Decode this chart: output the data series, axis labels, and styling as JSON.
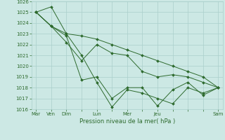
{
  "bg_color": "#cce8e4",
  "grid_color": "#aacfcb",
  "line_color": "#2d6a2d",
  "marker_color": "#2d6a2d",
  "xlabel": "Pression niveau de la mer( hPa )",
  "xlabel_color": "#2d6a2d",
  "tick_color": "#2d6a2d",
  "ylim": [
    1016,
    1026
  ],
  "yticks": [
    1016,
    1017,
    1018,
    1019,
    1020,
    1021,
    1022,
    1023,
    1024,
    1025,
    1026
  ],
  "xtick_labels": [
    "Mar",
    "Ven",
    "Dim",
    "",
    "Lun",
    "",
    "Mer",
    "",
    "Jeu",
    "",
    "",
    "",
    "Sam"
  ],
  "xtick_positions": [
    0,
    1,
    2,
    3,
    4,
    5,
    6,
    7,
    8,
    9,
    10,
    11,
    12
  ],
  "series": [
    [
      1025.0,
      1025.5,
      1023.0,
      1021.0,
      1018.5,
      1016.2,
      1017.8,
      1017.5,
      1017.0,
      1016.5,
      1018.0,
      1017.5,
      1018.0
    ],
    [
      1025.0,
      1023.7,
      1022.8,
      1018.7,
      1019.0,
      1017.0,
      1018.0,
      1018.0,
      1016.3,
      1017.8,
      1018.5,
      1017.3,
      1018.0
    ],
    [
      1025.0,
      1023.7,
      1022.2,
      1020.5,
      1022.0,
      1021.2,
      1021.0,
      1019.5,
      1019.0,
      1019.2,
      1019.0,
      1018.5,
      1018.0
    ],
    [
      1025.0,
      1023.7,
      1023.0,
      1022.8,
      1022.5,
      1022.0,
      1021.5,
      1021.0,
      1020.5,
      1020.0,
      1019.5,
      1019.0,
      1018.0
    ]
  ],
  "figsize": [
    3.2,
    2.0
  ],
  "dpi": 100
}
